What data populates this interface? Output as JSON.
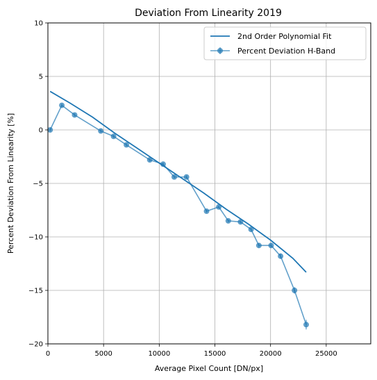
{
  "chart_data": {
    "type": "line",
    "title": "Deviation From Linearity 2019",
    "xlabel": "Average Pixel Count [DN/px]",
    "ylabel": "Percent Deviation From Linearity [%]",
    "xlim": [
      0,
      29000
    ],
    "ylim": [
      -20,
      10
    ],
    "x_ticks": [
      0,
      5000,
      10000,
      15000,
      20000,
      25000
    ],
    "y_ticks": [
      -20,
      -15,
      -10,
      -5,
      0,
      5,
      10
    ],
    "x_tick_labels": [
      "0",
      "5000",
      "10000",
      "15000",
      "20000",
      "25000"
    ],
    "y_tick_labels": [
      "−20",
      "−15",
      "−10",
      "−5",
      "0",
      "5",
      "10"
    ],
    "grid": true,
    "legend_position": "top-right",
    "series": [
      {
        "name": "2nd Order Polynomial Fit",
        "kind": "line",
        "color": "#1f77b4",
        "x": [
          200,
          2000,
          4000,
          6000,
          8000,
          10000,
          12000,
          14000,
          16000,
          18000,
          20000,
          22000,
          23200
        ],
        "y": [
          3.6,
          2.5,
          1.2,
          -0.3,
          -1.7,
          -3.1,
          -4.5,
          -5.9,
          -7.4,
          -8.8,
          -10.3,
          -12.0,
          -13.3
        ]
      },
      {
        "name": "Percent Deviation H-Band",
        "kind": "errorbar",
        "color": "#1f77b4",
        "x": [
          200,
          1250,
          2400,
          4750,
          5900,
          7050,
          9150,
          10350,
          11350,
          12450,
          14250,
          15350,
          16200,
          17300,
          18250,
          18950,
          20050,
          20900,
          22150,
          23200
        ],
        "y": [
          0.0,
          2.3,
          1.4,
          -0.1,
          -0.6,
          -1.4,
          -2.8,
          -3.2,
          -4.4,
          -4.4,
          -7.6,
          -7.2,
          -8.5,
          -8.6,
          -9.3,
          -10.8,
          -10.8,
          -11.8,
          -15.0,
          -18.2
        ],
        "yerr": [
          0.15,
          0.15,
          0.15,
          0.15,
          0.15,
          0.15,
          0.15,
          0.15,
          0.15,
          0.15,
          0.15,
          0.15,
          0.15,
          0.15,
          0.15,
          0.2,
          0.2,
          0.25,
          0.3,
          0.45
        ]
      }
    ]
  }
}
